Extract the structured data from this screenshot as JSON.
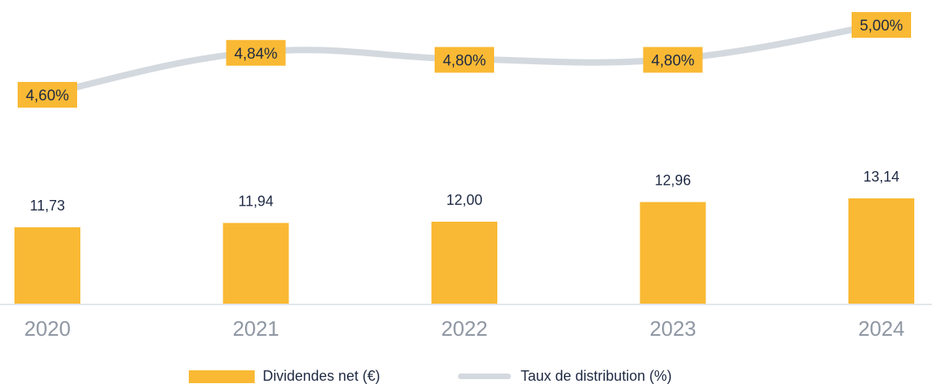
{
  "colors": {
    "bar": "#f9b934",
    "line": "#d3d9de",
    "axis": "#d8dde2",
    "tick": "#8f97a3",
    "text": "#1f2a44"
  },
  "chart_data": {
    "type": "bar",
    "categories": [
      "2020",
      "2021",
      "2022",
      "2023",
      "2024"
    ],
    "series": [
      {
        "name": "Dividendes net (€)",
        "type": "bar",
        "values": [
          11.73,
          11.94,
          12.0,
          12.96,
          13.14
        ],
        "labels": [
          "11,73",
          "11,94",
          "12,00",
          "12,96",
          "13,14"
        ]
      },
      {
        "name": "Taux de distribution (%)",
        "type": "line",
        "values": [
          4.6,
          4.84,
          4.8,
          4.8,
          5.0
        ],
        "labels": [
          "4,60%",
          "4,84%",
          "4,80%",
          "4,80%",
          "5,00%"
        ]
      }
    ],
    "grid": false,
    "legend_position": "bottom"
  },
  "legend": {
    "bars": "Dividendes net (€)",
    "line": "Taux de distribution (%)"
  }
}
